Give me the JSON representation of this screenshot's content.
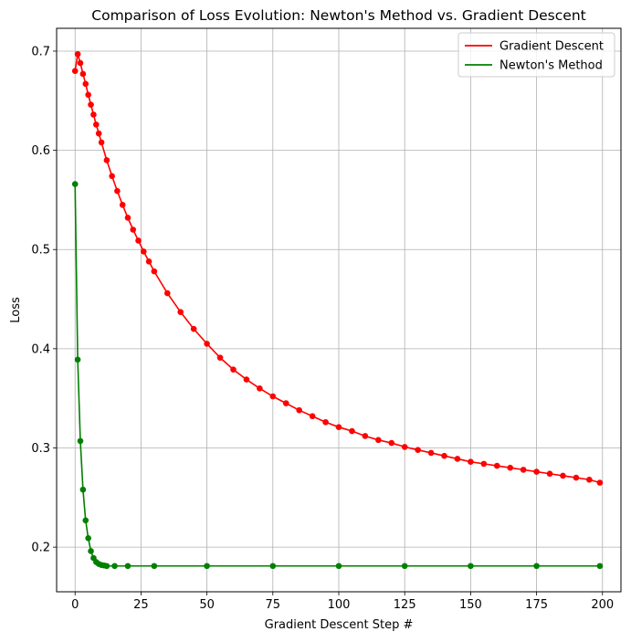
{
  "chart_data": {
    "type": "line",
    "title": "Comparison of Loss Evolution: Newton's Method vs. Gradient Descent",
    "xlabel": "Gradient Descent Step #",
    "ylabel": "Loss",
    "xlim": [
      -7,
      207
    ],
    "ylim": [
      0.155,
      0.723
    ],
    "xticks": [
      0,
      25,
      50,
      75,
      100,
      125,
      150,
      175,
      200
    ],
    "xtick_labels": [
      "0",
      "25",
      "50",
      "75",
      "100",
      "125",
      "150",
      "175",
      "200"
    ],
    "yticks": [
      0.2,
      0.3,
      0.4,
      0.5,
      0.6,
      0.7
    ],
    "ytick_labels": [
      "0.2",
      "0.3",
      "0.4",
      "0.5",
      "0.6",
      "0.7"
    ],
    "grid": true,
    "legend_position": "top-right",
    "series": [
      {
        "name": "Gradient Descent",
        "color": "#ff0000",
        "marker": "circle",
        "x": [
          0,
          1,
          2,
          3,
          4,
          5,
          6,
          7,
          8,
          9,
          10,
          12,
          14,
          16,
          18,
          20,
          22,
          24,
          26,
          28,
          30,
          35,
          40,
          45,
          50,
          55,
          60,
          65,
          70,
          75,
          80,
          85,
          90,
          95,
          100,
          105,
          110,
          115,
          120,
          125,
          130,
          135,
          140,
          145,
          150,
          155,
          160,
          165,
          170,
          175,
          180,
          185,
          190,
          195,
          199
        ],
        "values": [
          0.68,
          0.697,
          0.688,
          0.677,
          0.667,
          0.656,
          0.646,
          0.636,
          0.626,
          0.617,
          0.608,
          0.59,
          0.574,
          0.559,
          0.545,
          0.532,
          0.52,
          0.509,
          0.498,
          0.488,
          0.478,
          0.456,
          0.437,
          0.42,
          0.405,
          0.391,
          0.379,
          0.369,
          0.36,
          0.352,
          0.345,
          0.338,
          0.332,
          0.326,
          0.321,
          0.317,
          0.312,
          0.308,
          0.305,
          0.301,
          0.298,
          0.295,
          0.292,
          0.289,
          0.286,
          0.284,
          0.282,
          0.28,
          0.278,
          0.276,
          0.274,
          0.272,
          0.27,
          0.268,
          0.265
        ]
      },
      {
        "name": "Newton's Method",
        "color": "#008000",
        "marker": "circle",
        "x": [
          0,
          1,
          2,
          3,
          4,
          5,
          6,
          7,
          8,
          9,
          10,
          11,
          12,
          15,
          20,
          30,
          50,
          75,
          100,
          125,
          150,
          175,
          199
        ],
        "values": [
          0.566,
          0.389,
          0.307,
          0.258,
          0.227,
          0.209,
          0.196,
          0.189,
          0.185,
          0.183,
          0.182,
          0.1815,
          0.181,
          0.181,
          0.181,
          0.181,
          0.181,
          0.181,
          0.181,
          0.181,
          0.181,
          0.181,
          0.181
        ]
      }
    ]
  }
}
